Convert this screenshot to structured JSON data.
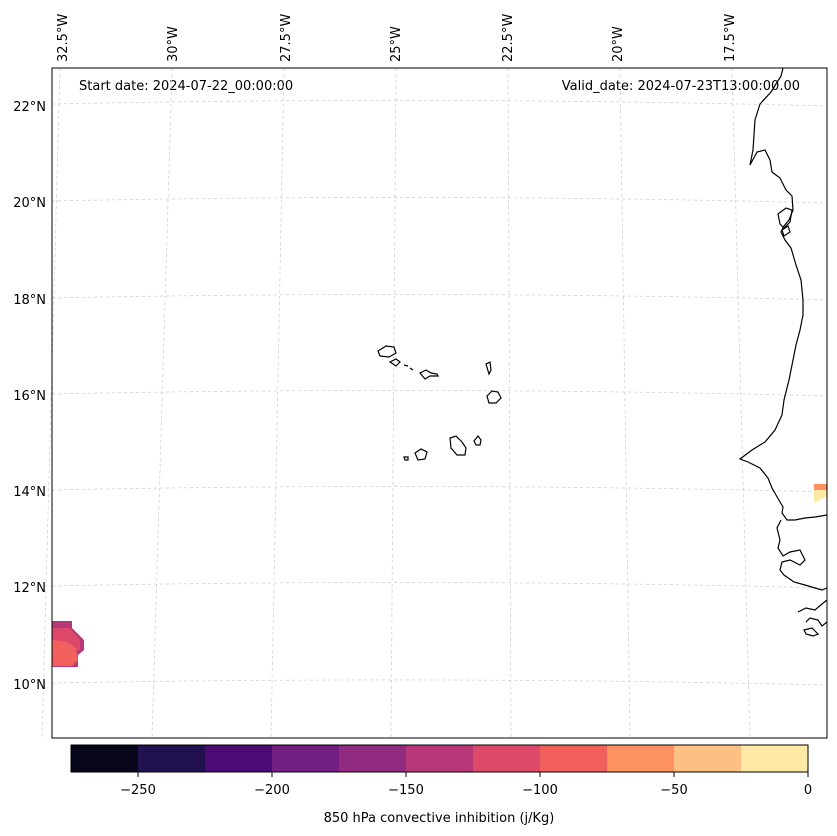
{
  "header": {
    "start_date": "Start date: 2024-07-22_00:00:00",
    "valid_date": "Valid_date: 2024-07-23T13:00:00.00"
  },
  "longitude_labels": [
    "32.5°W",
    "30°W",
    "27.5°W",
    "25°W",
    "22.5°W",
    "20°W",
    "17.5°W"
  ],
  "latitude_labels": [
    "22°N",
    "20°N",
    "18°N",
    "16°N",
    "14°N",
    "12°N",
    "10°N"
  ],
  "colorbar": {
    "label": "850 hPa convective inhibition (j/Kg)",
    "tick_labels": [
      "−250",
      "−200",
      "−150",
      "−100",
      "−50",
      "0"
    ],
    "bins": [
      {
        "min": -275,
        "max": -250,
        "color": "#06051a"
      },
      {
        "min": -250,
        "max": -225,
        "color": "#21114e"
      },
      {
        "min": -225,
        "max": -200,
        "color": "#4a0c74"
      },
      {
        "min": -200,
        "max": -175,
        "color": "#721f81"
      },
      {
        "min": -175,
        "max": -150,
        "color": "#912b7f"
      },
      {
        "min": -150,
        "max": -125,
        "color": "#b73779"
      },
      {
        "min": -125,
        "max": -100,
        "color": "#dd4a69"
      },
      {
        "min": -100,
        "max": -75,
        "color": "#f1605d"
      },
      {
        "min": -75,
        "max": -50,
        "color": "#fe9160"
      },
      {
        "min": -50,
        "max": -25,
        "color": "#febf83"
      },
      {
        "min": -25,
        "max": 0,
        "color": "#fde9a5"
      }
    ]
  },
  "styles": {
    "gridline_color": "#d0d0d0",
    "coastline_color": "#000000",
    "frame_color": "#000000"
  }
}
